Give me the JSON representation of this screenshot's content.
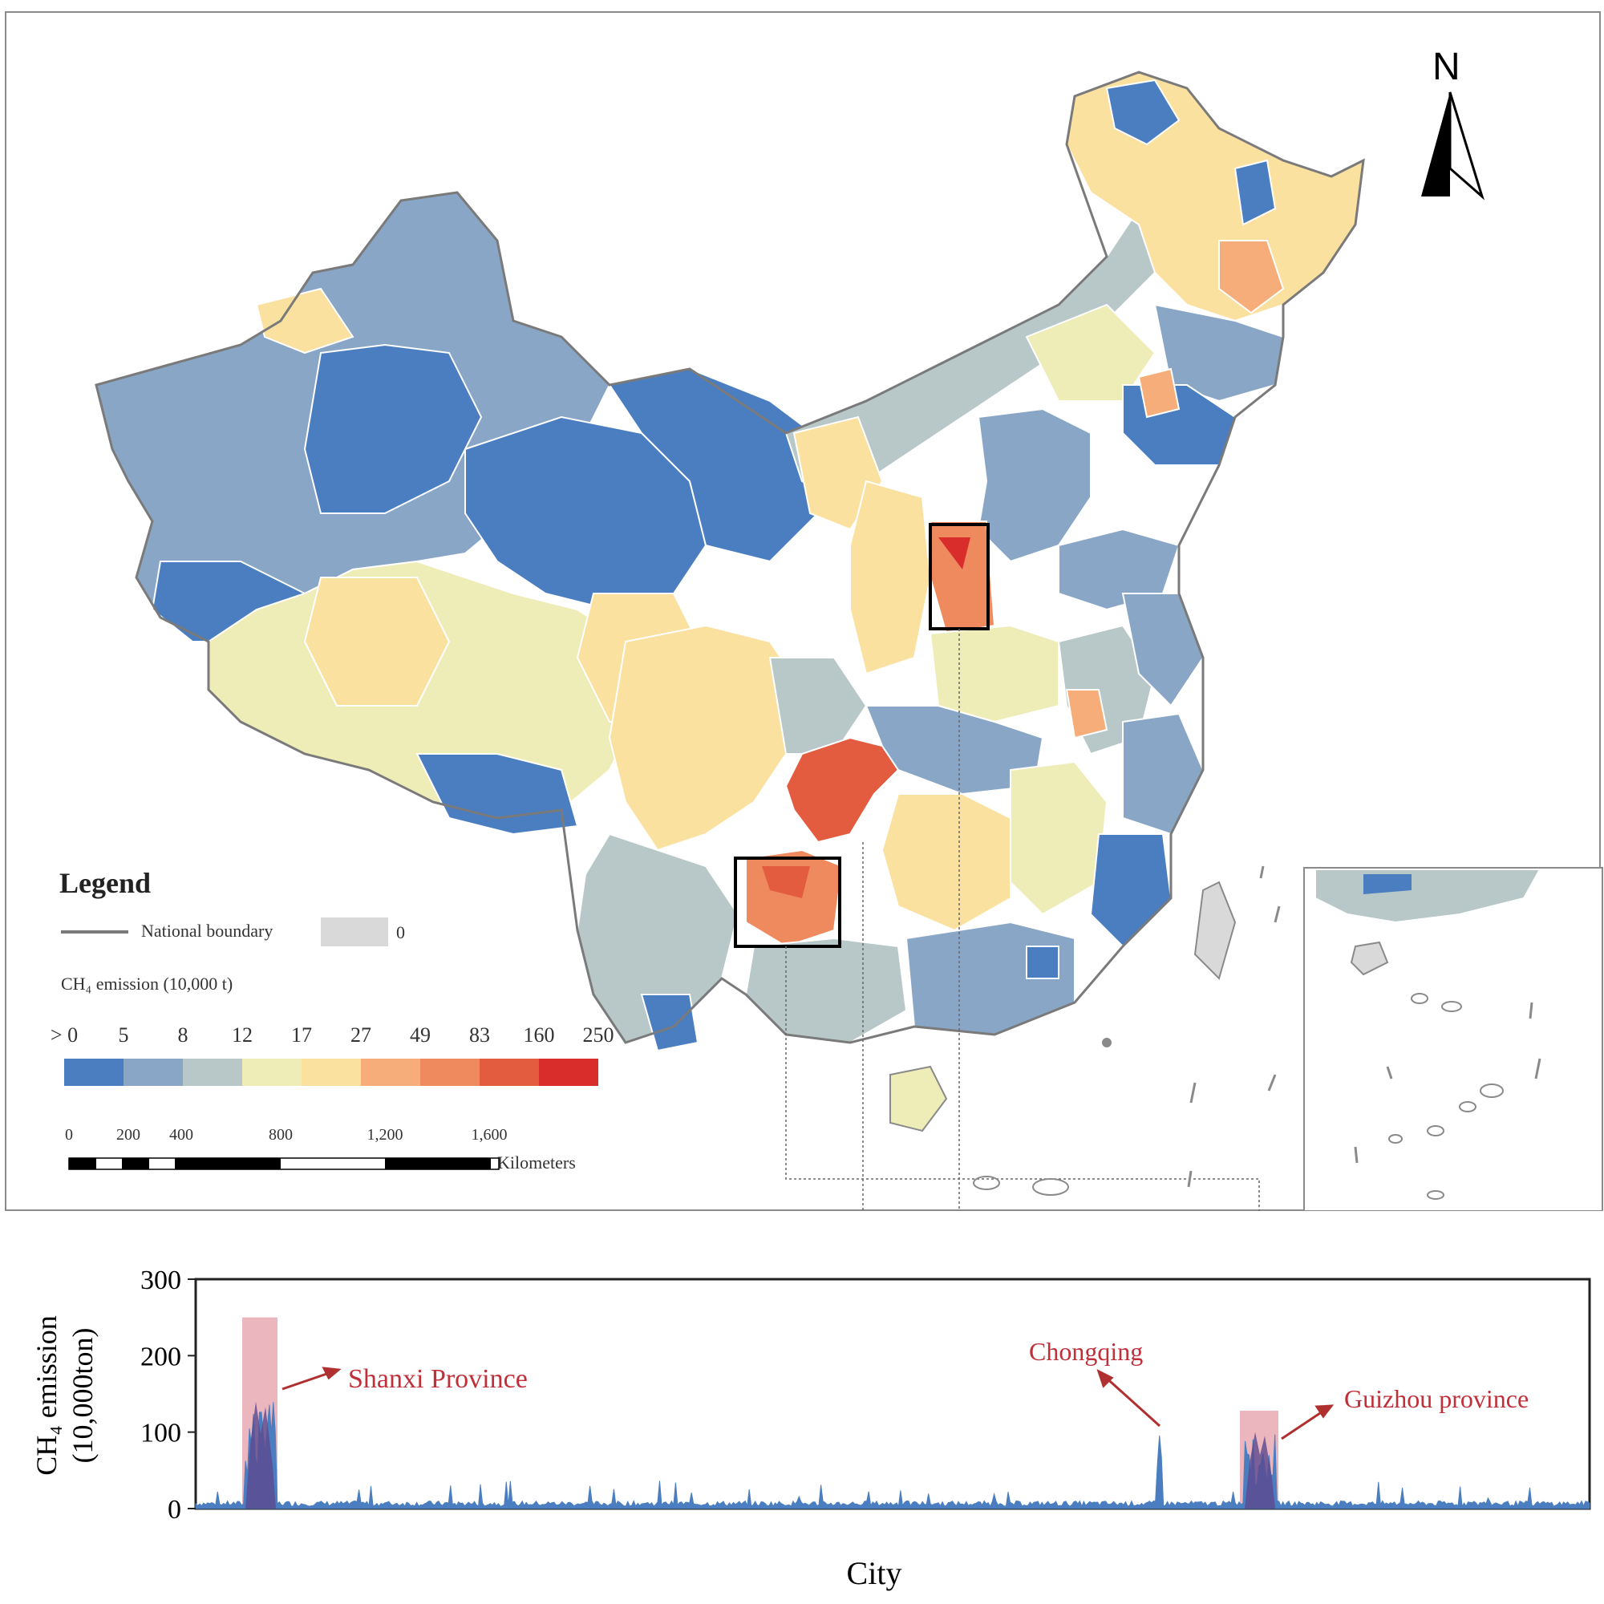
{
  "map": {
    "north_label": "N",
    "legend": {
      "title": "Legend",
      "boundary_label": "National boundary",
      "zero_label": "0",
      "zero_color": "#d9d9d9",
      "emission_title": "CH₄ emission (10,000 t)",
      "breaks": [
        "> 0",
        "5",
        "8",
        "12",
        "17",
        "27",
        "49",
        "83",
        "160",
        "250"
      ],
      "colors": [
        "#4a7ec0",
        "#8aa6c6",
        "#b8c8c8",
        "#eeedb8",
        "#fbe1a0",
        "#f6ad7a",
        "#ee8a5e",
        "#e45c3f",
        "#d92d2b"
      ]
    },
    "scale_bar": {
      "ticks": [
        "0",
        "200",
        "400",
        "800",
        "1,200",
        "1,600"
      ],
      "unit": "Kilometers"
    }
  },
  "chart_data": {
    "type": "area",
    "xlabel": "City",
    "ylabel_line1": "CH₄ emission",
    "ylabel_line2": "(10,000ton)",
    "ylim": [
      0,
      300
    ],
    "yticks": [
      0,
      100,
      200,
      300
    ],
    "series_color": "#4a7ec0",
    "highlight_color": "#e9a9b3",
    "highlights": [
      {
        "label": "Shanxi Province",
        "max": 250
      },
      {
        "label": "Guizhou province",
        "max": 128
      }
    ],
    "annotations": [
      {
        "label": "Shanxi Province",
        "color": "#c0303a"
      },
      {
        "label": "Chongqing",
        "color": "#c0303a"
      },
      {
        "label": "Guizhou province",
        "color": "#c0303a"
      }
    ],
    "peaks": [
      {
        "name": "Shanxi Province",
        "value": 140
      },
      {
        "name": "Chongqing",
        "value": 100
      },
      {
        "name": "Guizhou province",
        "value": 100
      }
    ]
  }
}
